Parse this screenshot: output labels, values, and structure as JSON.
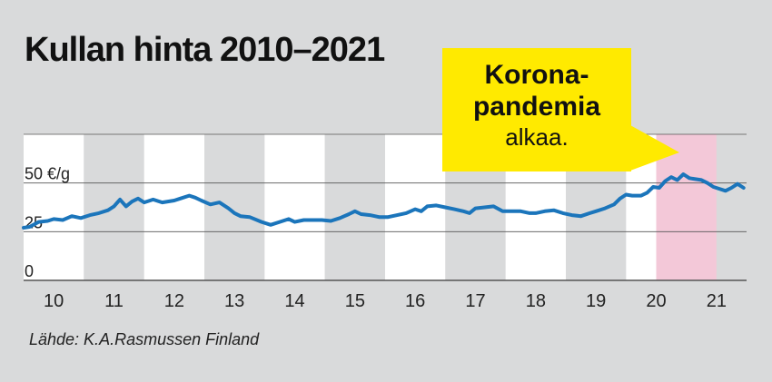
{
  "title": "Kullan hinta 2010–2021",
  "callout": {
    "line1": "Korona-",
    "line2": "pandemia",
    "line3": "alkaa."
  },
  "source": "Lähde: K.A.Rasmussen Finland",
  "colors": {
    "background": "#d9dadb",
    "band_light": "#ffffff",
    "band_dark": "#d9dadb",
    "highlight": "#f3c8d8",
    "line": "#1b75bb",
    "callout": "#ffea00"
  },
  "chart_data": {
    "type": "line",
    "title": "Kullan hinta 2010–2021",
    "xlabel": "",
    "ylabel": "",
    "x_ticks": [
      "10",
      "11",
      "12",
      "13",
      "14",
      "15",
      "16",
      "17",
      "18",
      "19",
      "20",
      "21"
    ],
    "y_ticks": [
      {
        "value": 0,
        "label": "0"
      },
      {
        "value": 25,
        "label": "25"
      },
      {
        "value": 50,
        "label": "50 €/g"
      }
    ],
    "xlim": [
      2009.5,
      2021.5
    ],
    "ylim": [
      0,
      75
    ],
    "grid": true,
    "highlight_range": [
      2020.0,
      2021.0
    ],
    "series": [
      {
        "values": [
          [
            2009.5,
            27.0
          ],
          [
            2009.6,
            27.5
          ],
          [
            2009.75,
            30.0
          ],
          [
            2009.9,
            30.5
          ],
          [
            2010.0,
            31.5
          ],
          [
            2010.15,
            31.0
          ],
          [
            2010.3,
            33.0
          ],
          [
            2010.45,
            32.0
          ],
          [
            2010.6,
            33.5
          ],
          [
            2010.75,
            34.5
          ],
          [
            2010.9,
            36.0
          ],
          [
            2011.0,
            38.0
          ],
          [
            2011.1,
            41.5
          ],
          [
            2011.2,
            38.0
          ],
          [
            2011.3,
            40.5
          ],
          [
            2011.4,
            42.0
          ],
          [
            2011.5,
            40.0
          ],
          [
            2011.65,
            41.5
          ],
          [
            2011.8,
            40.0
          ],
          [
            2012.0,
            41.0
          ],
          [
            2012.1,
            42.0
          ],
          [
            2012.25,
            43.5
          ],
          [
            2012.35,
            42.5
          ],
          [
            2012.45,
            41.0
          ],
          [
            2012.6,
            39.0
          ],
          [
            2012.75,
            40.0
          ],
          [
            2012.9,
            37.0
          ],
          [
            2013.0,
            34.5
          ],
          [
            2013.1,
            33.0
          ],
          [
            2013.25,
            32.5
          ],
          [
            2013.45,
            30.0
          ],
          [
            2013.6,
            28.5
          ],
          [
            2013.75,
            30.0
          ],
          [
            2013.9,
            31.5
          ],
          [
            2014.0,
            30.0
          ],
          [
            2014.15,
            31.0
          ],
          [
            2014.3,
            31.0
          ],
          [
            2014.45,
            31.0
          ],
          [
            2014.6,
            30.5
          ],
          [
            2014.75,
            32.0
          ],
          [
            2014.9,
            34.0
          ],
          [
            2015.0,
            35.5
          ],
          [
            2015.1,
            34.0
          ],
          [
            2015.25,
            33.5
          ],
          [
            2015.4,
            32.5
          ],
          [
            2015.55,
            32.5
          ],
          [
            2015.7,
            33.5
          ],
          [
            2015.85,
            34.5
          ],
          [
            2016.0,
            36.5
          ],
          [
            2016.1,
            35.5
          ],
          [
            2016.2,
            38.0
          ],
          [
            2016.35,
            38.5
          ],
          [
            2016.5,
            37.5
          ],
          [
            2016.65,
            36.5
          ],
          [
            2016.8,
            35.5
          ],
          [
            2016.9,
            34.5
          ],
          [
            2017.0,
            37.0
          ],
          [
            2017.15,
            37.5
          ],
          [
            2017.3,
            38.0
          ],
          [
            2017.45,
            35.5
          ],
          [
            2017.6,
            35.5
          ],
          [
            2017.75,
            35.5
          ],
          [
            2017.9,
            34.5
          ],
          [
            2018.0,
            34.5
          ],
          [
            2018.15,
            35.5
          ],
          [
            2018.3,
            36.0
          ],
          [
            2018.45,
            34.5
          ],
          [
            2018.6,
            33.5
          ],
          [
            2018.75,
            33.0
          ],
          [
            2018.9,
            34.5
          ],
          [
            2019.0,
            35.5
          ],
          [
            2019.15,
            37.0
          ],
          [
            2019.3,
            39.0
          ],
          [
            2019.4,
            42.0
          ],
          [
            2019.5,
            44.0
          ],
          [
            2019.6,
            43.5
          ],
          [
            2019.75,
            43.5
          ],
          [
            2019.85,
            45.0
          ],
          [
            2019.95,
            48.0
          ],
          [
            2020.05,
            47.5
          ],
          [
            2020.15,
            51.0
          ],
          [
            2020.25,
            53.0
          ],
          [
            2020.35,
            51.5
          ],
          [
            2020.45,
            54.5
          ],
          [
            2020.55,
            52.5
          ],
          [
            2020.65,
            52.0
          ],
          [
            2020.75,
            51.5
          ],
          [
            2020.85,
            50.0
          ],
          [
            2020.95,
            48.0
          ],
          [
            2021.05,
            47.0
          ],
          [
            2021.15,
            46.0
          ],
          [
            2021.25,
            47.5
          ],
          [
            2021.35,
            49.5
          ],
          [
            2021.45,
            47.5
          ]
        ]
      }
    ]
  }
}
